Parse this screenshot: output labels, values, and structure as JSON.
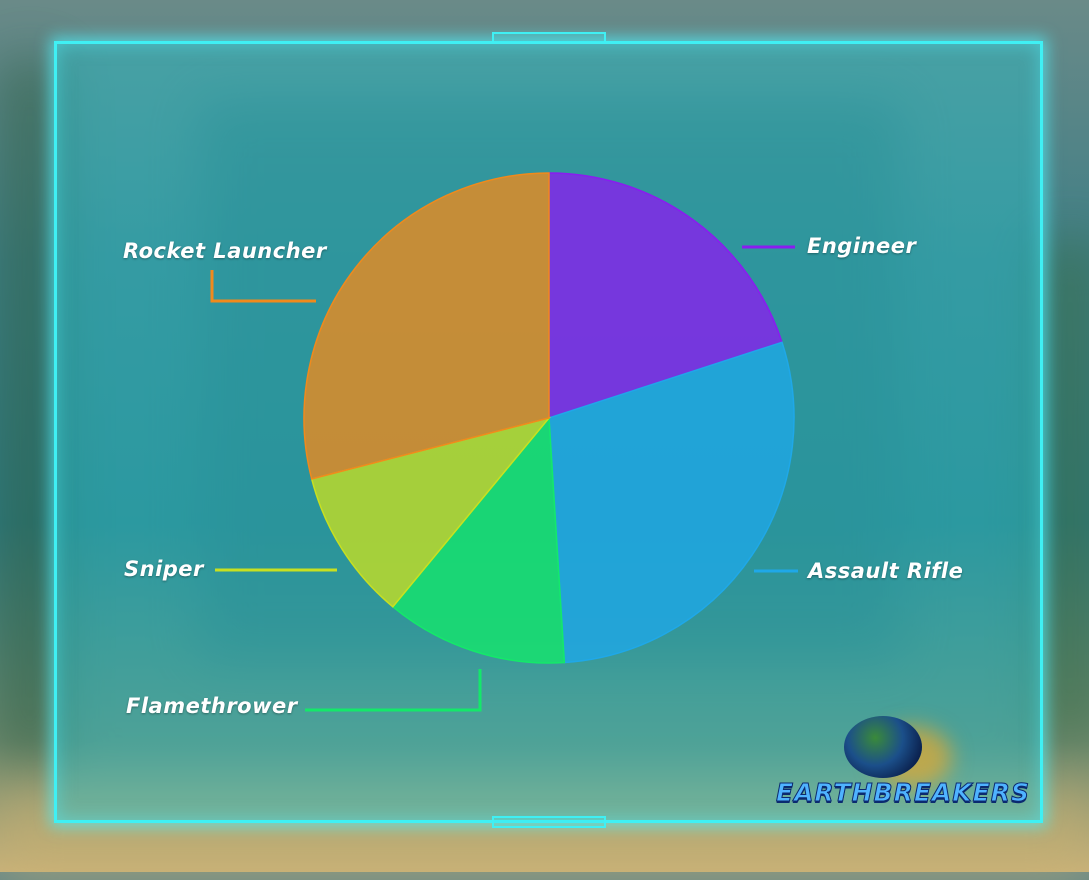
{
  "chart_data": {
    "type": "pie",
    "title": "",
    "start_angle": "top, clockwise",
    "slices": [
      {
        "label": "Engineer",
        "value": 20,
        "color": "#8a1cf0"
      },
      {
        "label": "Assault Rifle",
        "value": 29,
        "color": "#1fa8e8"
      },
      {
        "label": "Flamethrower",
        "value": 12,
        "color": "#14e86a"
      },
      {
        "label": "Sniper",
        "value": 10,
        "color": "#c8e020"
      },
      {
        "label": "Rocket Launcher",
        "value": 29,
        "color": "#f08a1c"
      }
    ],
    "legend": "none (leader-line labels)"
  },
  "branding": {
    "logo_text": "EARTHBREAKERS"
  },
  "colors": {
    "frame": "#3ff0f4"
  }
}
